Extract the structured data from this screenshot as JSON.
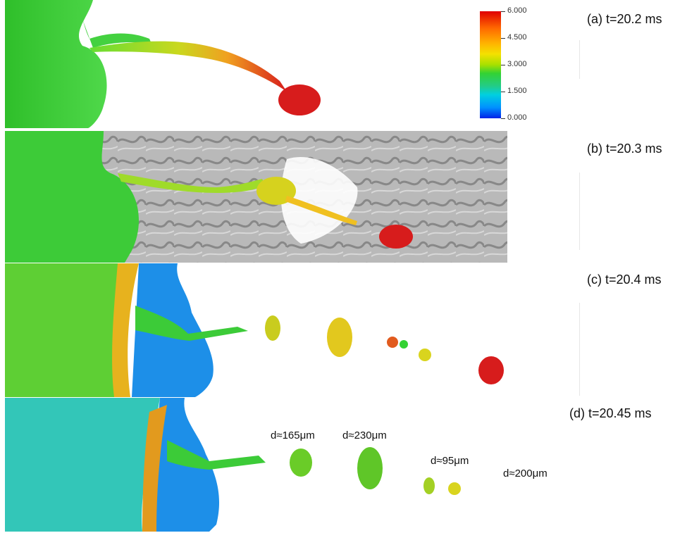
{
  "frames": [
    {
      "label": "(a) t=20.2 ms"
    },
    {
      "label": "(b) t=20.3 ms"
    },
    {
      "label": "(c) t=20.4 ms"
    },
    {
      "label": "(d) t=20.45 ms"
    }
  ],
  "colorbar": {
    "ticks": [
      "6.000",
      "4.500",
      "3.000",
      "1.500",
      "0.000"
    ],
    "colors": {
      "max": "#e00000",
      "mid_high": "#ffb300",
      "mid": "#33d233",
      "mid_low": "#00d0e0",
      "min": "#0022e8"
    }
  },
  "droplets": {
    "d1": "d≈165μm",
    "d2": "d≈230μm",
    "d3": "d≈95μm",
    "d4": "d≈200μm"
  },
  "colors": {
    "surface_green": "#3fcf3a",
    "surface_yellow": "#f0d21e",
    "surface_red": "#d71c1c",
    "surface_blue": "#1d8fe8",
    "vortex_gray": "#9a9a9a"
  }
}
